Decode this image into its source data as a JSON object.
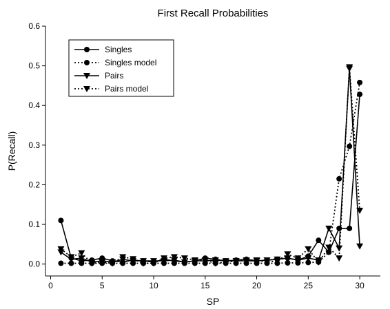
{
  "chart_data": {
    "type": "line",
    "title": "First Recall Probabilities",
    "xlabel": "SP",
    "ylabel": "P(Recall)",
    "xlim": [
      -0.5,
      32
    ],
    "ylim": [
      -0.03,
      0.6
    ],
    "xticks": [
      0,
      5,
      10,
      15,
      20,
      25,
      30
    ],
    "yticks": [
      0.0,
      0.1,
      0.2,
      0.3,
      0.4,
      0.5,
      0.6
    ],
    "xtick_labels": [
      "0",
      "5",
      "10",
      "15",
      "20",
      "25",
      "30"
    ],
    "ytick_labels": [
      "0.0",
      "0.1",
      "0.2",
      "0.3",
      "0.4",
      "0.5",
      "0.6"
    ],
    "grid": false,
    "legend_position": "top-left",
    "x": [
      1,
      2,
      3,
      4,
      5,
      6,
      7,
      8,
      9,
      10,
      11,
      12,
      13,
      14,
      15,
      16,
      17,
      18,
      19,
      20,
      21,
      22,
      23,
      24,
      25,
      26,
      27,
      28,
      29,
      30
    ],
    "series": [
      {
        "name": "Singles",
        "line_style": "solid",
        "marker": "circle",
        "values": [
          0.11,
          0.015,
          0.008,
          0.01,
          0.015,
          0.008,
          0.005,
          0.01,
          0.008,
          0.005,
          0.012,
          0.008,
          0.005,
          0.008,
          0.015,
          0.012,
          0.008,
          0.01,
          0.012,
          0.008,
          0.01,
          0.012,
          0.015,
          0.01,
          0.02,
          0.06,
          0.03,
          0.09,
          0.09,
          0.428
        ]
      },
      {
        "name": "Singles model",
        "line_style": "dotted",
        "marker": "circle",
        "values": [
          0.002,
          0.002,
          0.002,
          0.002,
          0.002,
          0.002,
          0.002,
          0.002,
          0.002,
          0.002,
          0.002,
          0.002,
          0.002,
          0.002,
          0.002,
          0.002,
          0.002,
          0.002,
          0.002,
          0.002,
          0.002,
          0.002,
          0.003,
          0.003,
          0.004,
          0.005,
          0.03,
          0.215,
          0.297,
          0.458
        ]
      },
      {
        "name": "Pairs",
        "line_style": "solid",
        "marker": "triangle-down",
        "values": [
          0.03,
          0.012,
          0.015,
          0.005,
          0.008,
          0.005,
          0.012,
          0.008,
          0.008,
          0.008,
          0.008,
          0.01,
          0.005,
          0.008,
          0.008,
          0.01,
          0.008,
          0.008,
          0.008,
          0.008,
          0.01,
          0.012,
          0.015,
          0.01,
          0.015,
          0.01,
          0.09,
          0.04,
          0.493,
          0.045
        ]
      },
      {
        "name": "Pairs model",
        "line_style": "dotted",
        "marker": "triangle-down",
        "values": [
          0.038,
          0.018,
          0.028,
          0.002,
          0.005,
          0.002,
          0.018,
          0.013,
          0.002,
          0.002,
          0.015,
          0.018,
          0.015,
          0.01,
          0.01,
          0.002,
          0.005,
          0.008,
          0.01,
          0.01,
          0.005,
          0.008,
          0.025,
          0.015,
          0.038,
          0.005,
          0.042,
          0.015,
          0.497,
          0.135
        ]
      }
    ]
  }
}
